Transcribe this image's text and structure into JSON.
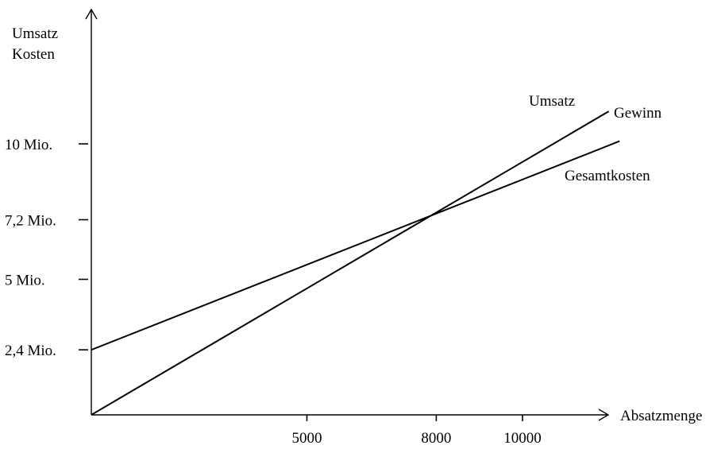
{
  "chart_data": {
    "type": "line",
    "ylabel_lines": [
      "Umsatz",
      "Kosten"
    ],
    "xlabel": "Absatzmenge",
    "x_ticks": [
      {
        "value": 5000,
        "label": "5000"
      },
      {
        "value": 8000,
        "label": "8000"
      },
      {
        "value": 10000,
        "label": "10000"
      }
    ],
    "y_ticks": [
      {
        "value": 2.4,
        "label": "2,4 Mio."
      },
      {
        "value": 5,
        "label": "5 Mio."
      },
      {
        "value": 7.2,
        "label": "7,2 Mio."
      },
      {
        "value": 10,
        "label": "10 Mio."
      }
    ],
    "series": [
      {
        "name": "Umsatz",
        "x": [
          0,
          12000
        ],
        "y": [
          0,
          11.2
        ]
      },
      {
        "name": "Gesamtkosten",
        "x": [
          0,
          12250
        ],
        "y": [
          2.4,
          10.1
        ]
      }
    ],
    "annotations": [
      {
        "text": "Umsatz"
      },
      {
        "text": "Gewinn"
      },
      {
        "text": "Gesamtkosten"
      }
    ],
    "xlim": [
      0,
      12000
    ],
    "ylim": [
      0,
      14
    ],
    "grid": false,
    "legend": "none",
    "color": "#000000"
  }
}
